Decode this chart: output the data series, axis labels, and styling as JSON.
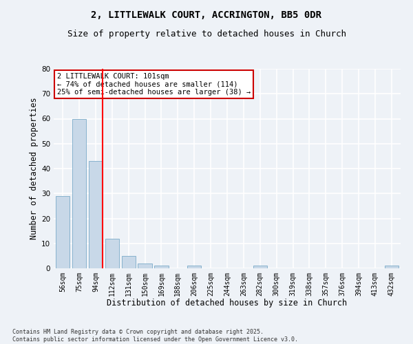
{
  "title1": "2, LITTLEWALK COURT, ACCRINGTON, BB5 0DR",
  "title2": "Size of property relative to detached houses in Church",
  "xlabel": "Distribution of detached houses by size in Church",
  "ylabel": "Number of detached properties",
  "categories": [
    "56sqm",
    "75sqm",
    "94sqm",
    "112sqm",
    "131sqm",
    "150sqm",
    "169sqm",
    "188sqm",
    "206sqm",
    "225sqm",
    "244sqm",
    "263sqm",
    "282sqm",
    "300sqm",
    "319sqm",
    "338sqm",
    "357sqm",
    "376sqm",
    "394sqm",
    "413sqm",
    "432sqm"
  ],
  "values": [
    29,
    60,
    43,
    12,
    5,
    2,
    1,
    0,
    1,
    0,
    0,
    0,
    1,
    0,
    0,
    0,
    0,
    0,
    0,
    0,
    1
  ],
  "bar_color": "#c8d8e8",
  "bar_edge_color": "#7aaac8",
  "ylim": [
    0,
    80
  ],
  "yticks": [
    0,
    10,
    20,
    30,
    40,
    50,
    60,
    70,
    80
  ],
  "red_line_x": 2.42,
  "annotation_text": "2 LITTLEWALK COURT: 101sqm\n← 74% of detached houses are smaller (114)\n25% of semi-detached houses are larger (38) →",
  "annotation_box_color": "#ffffff",
  "annotation_box_edge": "#cc0000",
  "copyright_text": "Contains HM Land Registry data © Crown copyright and database right 2025.\nContains public sector information licensed under the Open Government Licence v3.0.",
  "background_color": "#eef2f7",
  "grid_color": "#ffffff",
  "title_fontsize": 10,
  "subtitle_fontsize": 9,
  "tick_fontsize": 7,
  "label_fontsize": 8.5,
  "annot_fontsize": 7.5,
  "copyright_fontsize": 6
}
